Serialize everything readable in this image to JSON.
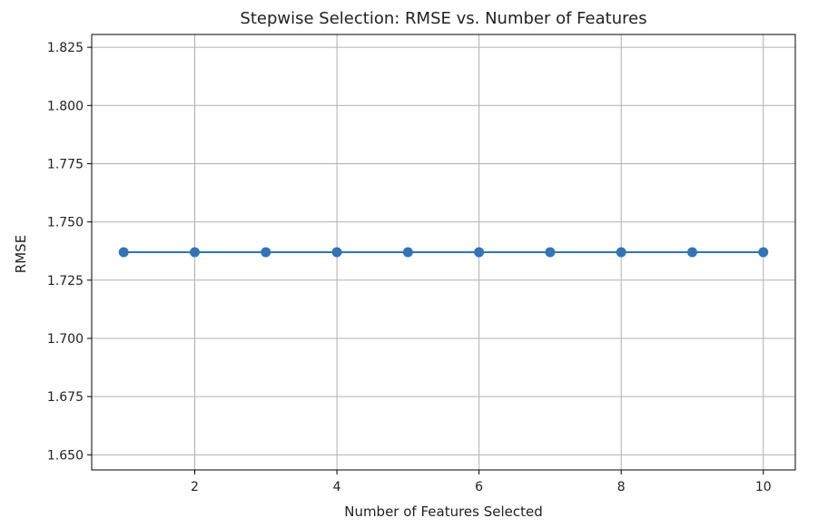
{
  "chart_data": {
    "type": "line",
    "title": "Stepwise Selection: RMSE vs. Number of Features",
    "xlabel": "Number of Features Selected",
    "ylabel": "RMSE",
    "x": [
      1,
      2,
      3,
      4,
      5,
      6,
      7,
      8,
      9,
      10
    ],
    "series": [
      {
        "values": [
          1.737,
          1.737,
          1.737,
          1.737,
          1.737,
          1.737,
          1.737,
          1.737,
          1.737,
          1.737
        ]
      }
    ],
    "xlim": [
      0.55,
      10.45
    ],
    "ylim": [
      1.6435,
      1.8305
    ],
    "xticks": [
      2,
      4,
      6,
      8,
      10
    ],
    "xtick_labels": [
      "2",
      "4",
      "6",
      "8",
      "10"
    ],
    "yticks": [
      1.65,
      1.675,
      1.7,
      1.725,
      1.75,
      1.775,
      1.8,
      1.825
    ],
    "ytick_labels": [
      "1.650",
      "1.675",
      "1.700",
      "1.725",
      "1.750",
      "1.775",
      "1.800",
      "1.825"
    ],
    "grid": true,
    "colors": {
      "line": "#3274b5",
      "marker": "#3274b5",
      "grid": "#b0b0b0",
      "axis": "#000000",
      "text": "#222222"
    }
  }
}
